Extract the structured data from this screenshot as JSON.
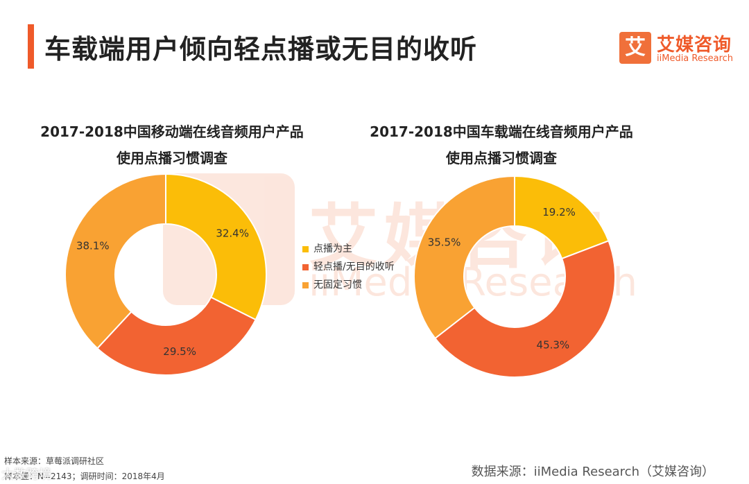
{
  "header": {
    "title": "车载端用户倾向轻点播或无目的收听",
    "logo_glyph": "艾",
    "logo_cn": "艾媒咨询",
    "logo_en": "iiMedia Research"
  },
  "watermark": {
    "cn": "艾媒咨询",
    "en": "iiMedia Research"
  },
  "colors": {
    "accent": "#ef5a2a",
    "slice_1": "#fbbd08",
    "slice_2": "#f26332",
    "slice_3": "#f9a233"
  },
  "legend": [
    {
      "label": "点播为主",
      "color": "#fbbd08"
    },
    {
      "label": "轻点播/无目的收听",
      "color": "#f26332"
    },
    {
      "label": "无固定习惯",
      "color": "#f9a233"
    }
  ],
  "chart_data": [
    {
      "type": "pie",
      "title_line1": "2017-2018中国移动端在线音频用户产品",
      "title_line2": "使用点播习惯调查",
      "categories": [
        "点播为主",
        "轻点播/无目的收听",
        "无固定习惯"
      ],
      "values": [
        32.4,
        29.5,
        38.1
      ],
      "labels": [
        "32.4%",
        "29.5%",
        "38.1%"
      ],
      "unit": "%"
    },
    {
      "type": "pie",
      "title_line1": "2017-2018中国车载端在线音频用户产品",
      "title_line2": "使用点播习惯调查",
      "categories": [
        "点播为主",
        "轻点播/无目的收听",
        "无固定习惯"
      ],
      "values": [
        19.2,
        45.3,
        35.5
      ],
      "labels": [
        "19.2%",
        "45.3%",
        "35.5%"
      ],
      "unit": "%"
    }
  ],
  "footer": {
    "sample_source": "样本来源：草莓派调研社区",
    "sample_size": "样本量：N=2143；调研时间：2018年4月",
    "data_source": "数据来源：iiMedia Research（艾媒咨询）",
    "corner_watermark": "大数跨境"
  }
}
